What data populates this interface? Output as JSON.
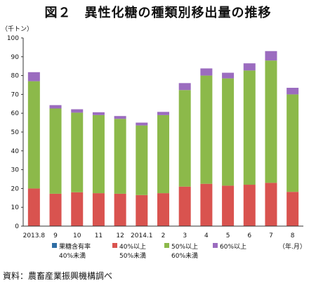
{
  "figure_title": "図２　異性化糖の種類別移出量の推移",
  "source_note": "資料：農畜産業振興機構調べ",
  "chart_data": {
    "type": "bar",
    "stacked": true,
    "ylabel": "（千トン）",
    "xunit_label": "（年.月）",
    "ylim": [
      0,
      100
    ],
    "ytick_step": 10,
    "grid": false,
    "legend_position": "bottom",
    "categories": [
      "2013.8",
      "9",
      "10",
      "11",
      "12",
      "2014.1",
      "2",
      "3",
      "4",
      "5",
      "6",
      "7",
      "8"
    ],
    "series": [
      {
        "name": "果糖含有率\n40%未満",
        "color": "#2e6da4",
        "values": [
          0,
          0,
          0,
          0,
          0,
          0,
          0,
          0,
          0,
          0,
          0,
          0,
          0
        ]
      },
      {
        "name": "40%以上\n50%未満",
        "color": "#d9534f",
        "values": [
          20,
          17.2,
          18,
          17.5,
          17.2,
          16.5,
          17.5,
          21,
          22.5,
          21.5,
          22,
          23,
          18.2
        ]
      },
      {
        "name": "50%以上\n60%未満",
        "color": "#8cb94a",
        "values": [
          57,
          45.3,
          42.3,
          41.5,
          39.8,
          37,
          41.5,
          51.3,
          57.5,
          57,
          60.7,
          65,
          51.8
        ]
      },
      {
        "name": "60%以上",
        "color": "#9b6cbf",
        "values": [
          4.8,
          1.8,
          1.8,
          1.5,
          1.5,
          1.5,
          1.7,
          3.7,
          3.8,
          3,
          3.8,
          5,
          3.5
        ]
      }
    ]
  }
}
